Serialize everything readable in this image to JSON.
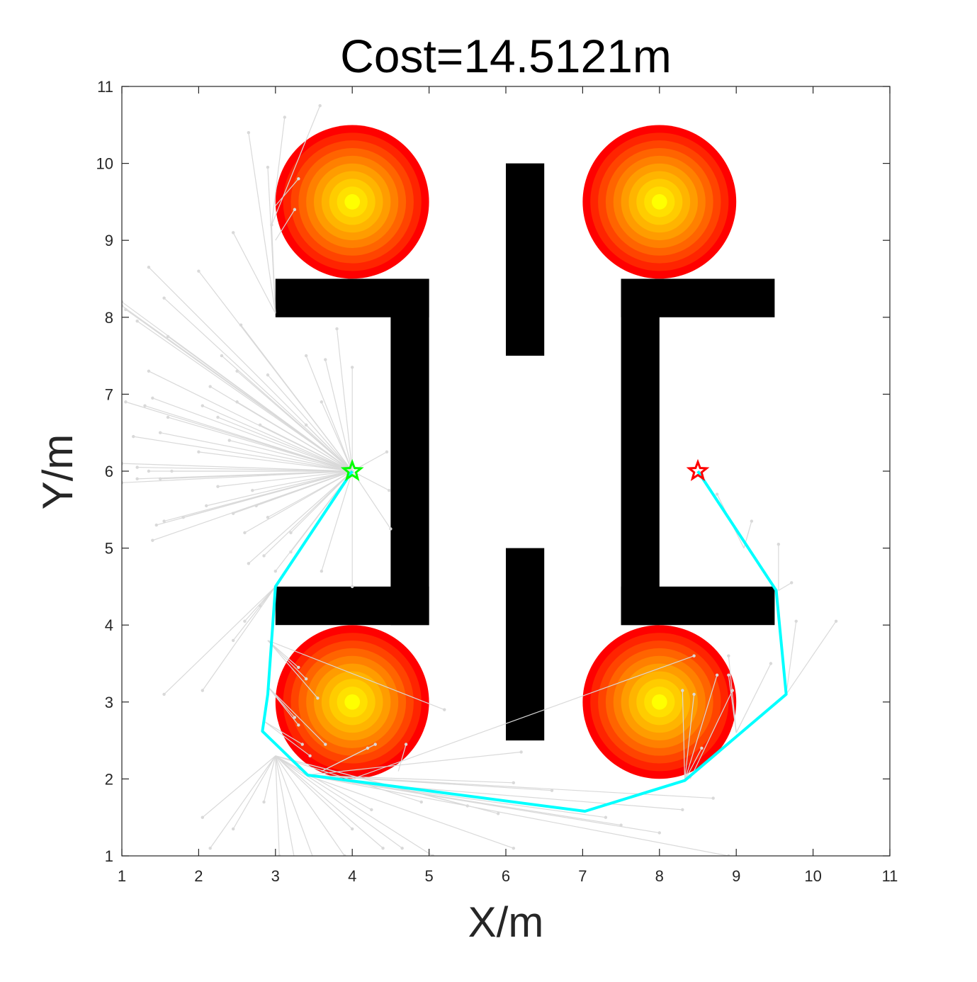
{
  "chart_data": {
    "type": "scatter",
    "title": "Cost=14.5121m",
    "xlabel": "X/m",
    "ylabel": "Y/m",
    "xlim": [
      1,
      11
    ],
    "ylim": [
      1,
      11
    ],
    "xticks": [
      "1",
      "2",
      "3",
      "4",
      "5",
      "6",
      "7",
      "8",
      "9",
      "10",
      "11"
    ],
    "yticks": [
      "1",
      "2",
      "3",
      "4",
      "5",
      "6",
      "7",
      "8",
      "9",
      "10",
      "11"
    ],
    "grid": false,
    "start": {
      "x": 4.0,
      "y": 6.0,
      "color": "#00ff00",
      "marker": "star"
    },
    "goal": {
      "x": 8.5,
      "y": 6.0,
      "color": "#ff0000",
      "marker": "star"
    },
    "path": {
      "color": "#00ffff",
      "points": [
        [
          4.0,
          6.0
        ],
        [
          3.0,
          4.5
        ],
        [
          2.9,
          3.1
        ],
        [
          2.83,
          2.62
        ],
        [
          3.42,
          2.05
        ],
        [
          7.03,
          1.58
        ],
        [
          8.33,
          1.98
        ],
        [
          9.65,
          3.1
        ],
        [
          9.52,
          4.45
        ],
        [
          8.5,
          6.0
        ]
      ]
    },
    "obstacles_rect": [
      {
        "x0": 3.0,
        "x1": 5.0,
        "y0": 8.0,
        "y1": 8.5
      },
      {
        "x0": 4.5,
        "x1": 5.0,
        "y0": 4.0,
        "y1": 8.5
      },
      {
        "x0": 3.0,
        "x1": 5.0,
        "y0": 4.0,
        "y1": 4.5
      },
      {
        "x0": 6.0,
        "x1": 6.5,
        "y0": 7.5,
        "y1": 10.0
      },
      {
        "x0": 6.0,
        "x1": 6.5,
        "y0": 2.5,
        "y1": 5.0
      },
      {
        "x0": 7.5,
        "x1": 9.5,
        "y0": 8.0,
        "y1": 8.5
      },
      {
        "x0": 7.5,
        "x1": 8.0,
        "y0": 4.0,
        "y1": 8.5
      },
      {
        "x0": 7.5,
        "x1": 9.5,
        "y0": 4.0,
        "y1": 4.5
      }
    ],
    "obstacles_circle": [
      {
        "cx": 4.0,
        "cy": 9.5,
        "r": 1.0
      },
      {
        "cx": 8.0,
        "cy": 9.5,
        "r": 1.0
      },
      {
        "cx": 4.0,
        "cy": 3.0,
        "r": 1.0
      },
      {
        "cx": 8.0,
        "cy": 3.0,
        "r": 1.0
      }
    ],
    "circle_gradient": [
      "#ff0000",
      "#ff2400",
      "#ff4400",
      "#ff6400",
      "#ff8000",
      "#ff9c00",
      "#ffb400",
      "#ffcc00",
      "#ffe000",
      "#ffff00"
    ],
    "tree_color": "#d9d9d9",
    "tree_edges": [
      [
        [
          4.0,
          6.0
        ],
        [
          1.0,
          8.2
        ]
      ],
      [
        [
          4.0,
          6.0
        ],
        [
          1.0,
          8.15
        ]
      ],
      [
        [
          4.0,
          6.0
        ],
        [
          1.05,
          8.1
        ]
      ],
      [
        [
          4.0,
          6.0
        ],
        [
          1.2,
          7.95
        ]
      ],
      [
        [
          4.0,
          6.0
        ],
        [
          1.35,
          8.65
        ]
      ],
      [
        [
          4.0,
          6.0
        ],
        [
          1.55,
          8.25
        ]
      ],
      [
        [
          4.0,
          6.0
        ],
        [
          1.6,
          7.75
        ]
      ],
      [
        [
          4.0,
          6.0
        ],
        [
          2.0,
          8.6
        ]
      ],
      [
        [
          4.0,
          6.0
        ],
        [
          2.15,
          7.1
        ]
      ],
      [
        [
          4.0,
          6.0
        ],
        [
          2.3,
          7.5
        ]
      ],
      [
        [
          4.0,
          6.0
        ],
        [
          2.5,
          7.3
        ]
      ],
      [
        [
          4.0,
          6.0
        ],
        [
          1.35,
          7.3
        ]
      ],
      [
        [
          4.0,
          6.0
        ],
        [
          1.4,
          6.95
        ]
      ],
      [
        [
          4.0,
          6.0
        ],
        [
          1.05,
          6.9
        ]
      ],
      [
        [
          4.0,
          6.0
        ],
        [
          1.3,
          6.85
        ]
      ],
      [
        [
          4.0,
          6.0
        ],
        [
          1.6,
          6.7
        ]
      ],
      [
        [
          4.0,
          6.0
        ],
        [
          2.05,
          6.85
        ]
      ],
      [
        [
          4.0,
          6.0
        ],
        [
          2.25,
          6.7
        ]
      ],
      [
        [
          4.0,
          6.0
        ],
        [
          2.8,
          6.6
        ]
      ],
      [
        [
          4.0,
          6.0
        ],
        [
          2.5,
          6.9
        ]
      ],
      [
        [
          4.0,
          6.0
        ],
        [
          1.15,
          6.45
        ]
      ],
      [
        [
          4.0,
          6.0
        ],
        [
          1.5,
          6.5
        ]
      ],
      [
        [
          4.0,
          6.0
        ],
        [
          2.0,
          6.25
        ]
      ],
      [
        [
          4.0,
          6.0
        ],
        [
          2.4,
          6.4
        ]
      ],
      [
        [
          4.0,
          6.0
        ],
        [
          1.0,
          6.1
        ]
      ],
      [
        [
          4.0,
          6.0
        ],
        [
          1.2,
          6.05
        ]
      ],
      [
        [
          4.0,
          6.0
        ],
        [
          1.35,
          6.0
        ]
      ],
      [
        [
          4.0,
          6.0
        ],
        [
          1.65,
          6.0
        ]
      ],
      [
        [
          4.0,
          6.0
        ],
        [
          1.0,
          5.85
        ]
      ],
      [
        [
          4.0,
          6.0
        ],
        [
          1.2,
          5.9
        ]
      ],
      [
        [
          4.0,
          6.0
        ],
        [
          1.5,
          5.9
        ]
      ],
      [
        [
          4.0,
          6.0
        ],
        [
          2.25,
          5.8
        ]
      ],
      [
        [
          4.0,
          6.0
        ],
        [
          2.7,
          5.75
        ]
      ],
      [
        [
          4.0,
          6.0
        ],
        [
          2.1,
          5.55
        ]
      ],
      [
        [
          4.0,
          6.0
        ],
        [
          2.45,
          5.45
        ]
      ],
      [
        [
          4.0,
          6.0
        ],
        [
          2.75,
          5.55
        ]
      ],
      [
        [
          4.0,
          6.0
        ],
        [
          1.55,
          5.35
        ]
      ],
      [
        [
          4.0,
          6.0
        ],
        [
          1.45,
          5.3
        ]
      ],
      [
        [
          4.0,
          6.0
        ],
        [
          1.8,
          5.4
        ]
      ],
      [
        [
          4.0,
          6.0
        ],
        [
          1.4,
          5.1
        ]
      ],
      [
        [
          4.0,
          6.0
        ],
        [
          2.6,
          5.2
        ]
      ],
      [
        [
          4.0,
          6.0
        ],
        [
          2.9,
          5.4
        ]
      ],
      [
        [
          4.0,
          6.0
        ],
        [
          2.65,
          4.8
        ]
      ],
      [
        [
          4.0,
          6.0
        ],
        [
          2.85,
          4.9
        ]
      ],
      [
        [
          4.0,
          6.0
        ],
        [
          3.2,
          5.2
        ]
      ],
      [
        [
          4.0,
          6.0
        ],
        [
          3.0,
          4.7
        ]
      ],
      [
        [
          4.0,
          6.0
        ],
        [
          3.2,
          4.95
        ]
      ],
      [
        [
          4.0,
          6.0
        ],
        [
          3.6,
          4.7
        ]
      ],
      [
        [
          4.0,
          6.0
        ],
        [
          4.0,
          4.5
        ]
      ],
      [
        [
          4.0,
          6.0
        ],
        [
          4.5,
          5.25
        ]
      ],
      [
        [
          4.0,
          6.0
        ],
        [
          4.48,
          5.75
        ]
      ],
      [
        [
          4.0,
          6.0
        ],
        [
          4.45,
          6.25
        ]
      ],
      [
        [
          4.0,
          6.0
        ],
        [
          4.0,
          7.35
        ]
      ],
      [
        [
          4.0,
          6.0
        ],
        [
          3.8,
          7.85
        ]
      ],
      [
        [
          4.0,
          6.0
        ],
        [
          3.65,
          7.45
        ]
      ],
      [
        [
          4.0,
          6.0
        ],
        [
          3.4,
          7.5
        ]
      ],
      [
        [
          4.0,
          6.0
        ],
        [
          3.6,
          6.9
        ]
      ],
      [
        [
          4.0,
          6.0
        ],
        [
          3.4,
          6.6
        ]
      ],
      [
        [
          4.0,
          6.0
        ],
        [
          2.9,
          7.25
        ]
      ],
      [
        [
          4.0,
          6.0
        ],
        [
          2.55,
          7.9
        ]
      ],
      [
        [
          3.0,
          8.05
        ],
        [
          2.95,
          9.2
        ]
      ],
      [
        [
          3.0,
          8.05
        ],
        [
          2.65,
          10.4
        ]
      ],
      [
        [
          3.0,
          8.05
        ],
        [
          2.9,
          9.95
        ]
      ],
      [
        [
          2.95,
          9.2
        ],
        [
          3.12,
          10.6
        ]
      ],
      [
        [
          2.95,
          9.2
        ],
        [
          3.58,
          10.75
        ]
      ],
      [
        [
          3.0,
          9.45
        ],
        [
          3.3,
          9.8
        ]
      ],
      [
        [
          3.0,
          9.0
        ],
        [
          3.25,
          9.4
        ]
      ],
      [
        [
          3.0,
          8.05
        ],
        [
          2.45,
          9.1
        ]
      ],
      [
        [
          3.0,
          4.5
        ],
        [
          1.55,
          3.1
        ]
      ],
      [
        [
          3.0,
          4.5
        ],
        [
          2.05,
          3.15
        ]
      ],
      [
        [
          3.0,
          4.5
        ],
        [
          2.6,
          4.05
        ]
      ],
      [
        [
          3.0,
          4.5
        ],
        [
          2.45,
          3.8
        ]
      ],
      [
        [
          3.0,
          4.5
        ],
        [
          2.8,
          4.25
        ]
      ],
      [
        [
          2.9,
          3.8
        ],
        [
          3.3,
          3.45
        ]
      ],
      [
        [
          2.9,
          3.8
        ],
        [
          3.4,
          3.3
        ]
      ],
      [
        [
          2.9,
          3.8
        ],
        [
          3.55,
          3.05
        ]
      ],
      [
        [
          2.9,
          3.8
        ],
        [
          5.2,
          2.9
        ]
      ],
      [
        [
          2.9,
          3.2
        ],
        [
          3.25,
          2.8
        ]
      ],
      [
        [
          2.9,
          3.2
        ],
        [
          3.3,
          2.7
        ]
      ],
      [
        [
          2.9,
          3.2
        ],
        [
          3.65,
          2.45
        ]
      ],
      [
        [
          2.85,
          2.75
        ],
        [
          3.35,
          2.45
        ]
      ],
      [
        [
          2.85,
          2.75
        ],
        [
          3.45,
          2.3
        ]
      ],
      [
        [
          3.0,
          2.3
        ],
        [
          2.05,
          1.5
        ]
      ],
      [
        [
          3.0,
          2.3
        ],
        [
          2.15,
          1.1
        ]
      ],
      [
        [
          3.0,
          2.3
        ],
        [
          2.45,
          1.35
        ]
      ],
      [
        [
          3.0,
          2.3
        ],
        [
          2.85,
          1.7
        ]
      ],
      [
        [
          3.0,
          2.3
        ],
        [
          3.05,
          1.0
        ]
      ],
      [
        [
          3.0,
          2.3
        ],
        [
          3.25,
          0.95
        ]
      ],
      [
        [
          3.0,
          2.3
        ],
        [
          3.5,
          0.95
        ]
      ],
      [
        [
          3.0,
          2.3
        ],
        [
          3.9,
          1.0
        ]
      ],
      [
        [
          3.0,
          2.3
        ],
        [
          4.0,
          1.35
        ]
      ],
      [
        [
          3.0,
          2.3
        ],
        [
          4.25,
          1.6
        ]
      ],
      [
        [
          3.0,
          2.3
        ],
        [
          4.4,
          1.1
        ]
      ],
      [
        [
          3.0,
          2.3
        ],
        [
          4.65,
          1.1
        ]
      ],
      [
        [
          3.0,
          2.3
        ],
        [
          4.9,
          1.7
        ]
      ],
      [
        [
          3.0,
          2.3
        ],
        [
          5.05,
          1.0
        ]
      ],
      [
        [
          3.0,
          2.3
        ],
        [
          5.5,
          1.65
        ]
      ],
      [
        [
          3.0,
          2.3
        ],
        [
          5.9,
          1.55
        ]
      ],
      [
        [
          3.4,
          2.05
        ],
        [
          6.1,
          1.95
        ]
      ],
      [
        [
          3.4,
          2.05
        ],
        [
          6.6,
          1.85
        ]
      ],
      [
        [
          3.4,
          2.05
        ],
        [
          6.2,
          2.35
        ]
      ],
      [
        [
          3.6,
          2.1
        ],
        [
          4.2,
          2.4
        ]
      ],
      [
        [
          3.6,
          2.1
        ],
        [
          4.3,
          2.45
        ]
      ],
      [
        [
          4.6,
          2.1
        ],
        [
          4.7,
          2.45
        ]
      ],
      [
        [
          3.4,
          2.05
        ],
        [
          6.1,
          1.1
        ]
      ],
      [
        [
          3.4,
          2.05
        ],
        [
          7.5,
          1.4
        ]
      ],
      [
        [
          3.4,
          2.05
        ],
        [
          8.0,
          1.3
        ]
      ],
      [
        [
          3.4,
          2.05
        ],
        [
          8.9,
          1.0
        ]
      ],
      [
        [
          3.4,
          2.05
        ],
        [
          8.7,
          1.75
        ]
      ],
      [
        [
          4.0,
          1.95
        ],
        [
          8.3,
          1.6
        ]
      ],
      [
        [
          4.0,
          1.95
        ],
        [
          7.3,
          1.5
        ]
      ],
      [
        [
          4.0,
          2.0
        ],
        [
          8.45,
          3.6
        ]
      ],
      [
        [
          8.33,
          1.98
        ],
        [
          8.3,
          3.15
        ]
      ],
      [
        [
          8.33,
          1.98
        ],
        [
          8.45,
          3.1
        ]
      ],
      [
        [
          8.33,
          1.98
        ],
        [
          8.55,
          2.4
        ]
      ],
      [
        [
          8.33,
          1.98
        ],
        [
          8.75,
          3.35
        ]
      ],
      [
        [
          8.4,
          2.0
        ],
        [
          8.95,
          3.15
        ]
      ],
      [
        [
          9.0,
          2.6
        ],
        [
          8.9,
          3.35
        ]
      ],
      [
        [
          9.0,
          2.6
        ],
        [
          8.9,
          3.6
        ]
      ],
      [
        [
          9.65,
          3.1
        ],
        [
          9.78,
          4.05
        ]
      ],
      [
        [
          9.65,
          3.1
        ],
        [
          10.3,
          4.05
        ]
      ],
      [
        [
          9.55,
          4.45
        ],
        [
          9.72,
          4.55
        ]
      ],
      [
        [
          9.55,
          4.45
        ],
        [
          9.55,
          5.05
        ]
      ],
      [
        [
          9.1,
          5.0
        ],
        [
          9.2,
          5.35
        ]
      ],
      [
        [
          9.1,
          5.0
        ],
        [
          8.75,
          5.7
        ]
      ],
      [
        [
          9.0,
          2.6
        ],
        [
          9.45,
          3.5
        ]
      ]
    ]
  }
}
